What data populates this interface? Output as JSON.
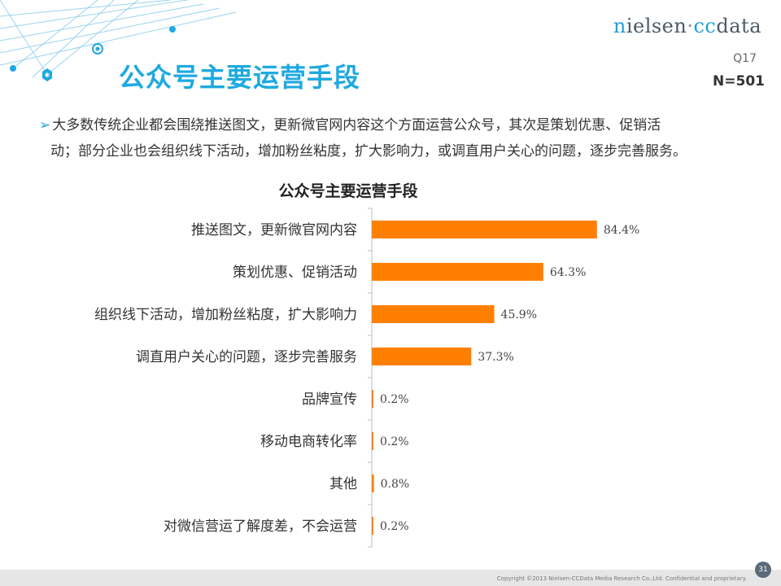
{
  "header": {
    "logo": {
      "n": "n",
      "ielsen": "ielsen",
      "dot": "·",
      "cc": "cc",
      "data": "data"
    },
    "slide_title": "公众号主要运营手段",
    "question": "Q17",
    "sample_size": "N=501"
  },
  "summary": {
    "line1": "大多数传统企业都会围绕推送图文，更新微官网内容这个方面运营公众号，其次是策划优惠、促销活",
    "line2": "动；部分企业也会组织线下活动，增加粉丝粘度，扩大影响力，或调直用户关心的问题，逐步完善服务。"
  },
  "chart_data": {
    "type": "bar",
    "orientation": "horizontal",
    "title": "公众号主要运营手段",
    "categories": [
      "推送图文，更新微官网内容",
      "策划优惠、促销活动",
      "组织线下活动，增加粉丝粘度，扩大影响力",
      "调直用户关心的问题，逐步完善服务",
      "品牌宣传",
      "移动电商转化率",
      "其他",
      "对微信营运了解度差，不会运营"
    ],
    "values": [
      84.4,
      64.3,
      45.9,
      37.3,
      0.2,
      0.2,
      0.8,
      0.2
    ],
    "value_labels": [
      "84.4%",
      "64.3%",
      "45.9%",
      "37.3%",
      "0.2%",
      "0.2%",
      "0.8%",
      "0.2%"
    ],
    "xlim": [
      0,
      100
    ],
    "bar_color": "#ff8000",
    "grid": false,
    "legend": "none"
  },
  "footer": {
    "copyright": "Copyright ©2013  Nielsen-CCData Media Research Co.,Ltd. Confidential and proprietary.",
    "page_number": "31"
  },
  "colors": {
    "accent": "#1ea9e0",
    "bar": "#ff8000"
  }
}
